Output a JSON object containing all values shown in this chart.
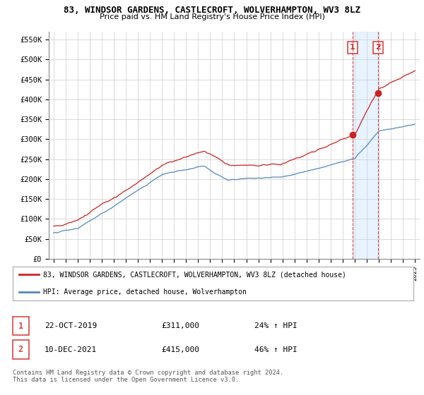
{
  "title_line1": "83, WINDSOR GARDENS, CASTLECROFT, WOLVERHAMPTON, WV3 8LZ",
  "title_line2": "Price paid vs. HM Land Registry's House Price Index (HPI)",
  "ylabel_ticks": [
    "£0",
    "£50K",
    "£100K",
    "£150K",
    "£200K",
    "£250K",
    "£300K",
    "£350K",
    "£400K",
    "£450K",
    "£500K",
    "£550K"
  ],
  "ytick_vals": [
    0,
    50000,
    100000,
    150000,
    200000,
    250000,
    300000,
    350000,
    400000,
    450000,
    500000,
    550000
  ],
  "ylim": [
    0,
    570000
  ],
  "x_start_year": 1995,
  "x_end_year": 2025,
  "xtick_years": [
    1995,
    1996,
    1997,
    1998,
    1999,
    2000,
    2001,
    2002,
    2003,
    2004,
    2005,
    2006,
    2007,
    2008,
    2009,
    2010,
    2011,
    2012,
    2013,
    2014,
    2015,
    2016,
    2017,
    2018,
    2019,
    2020,
    2021,
    2022,
    2023,
    2024,
    2025
  ],
  "hpi_color": "#5588bb",
  "price_color": "#cc2222",
  "sale1_year": 2019.81,
  "sale1_price": 311000,
  "sale2_year": 2021.94,
  "sale2_price": 415000,
  "vline_color": "#dd4444",
  "shade_color": "#ddeeff",
  "legend_line1": "83, WINDSOR GARDENS, CASTLECROFT, WOLVERHAMPTON, WV3 8LZ (detached house)",
  "legend_line2": "HPI: Average price, detached house, Wolverhampton",
  "table_row1": [
    "1",
    "22-OCT-2019",
    "£311,000",
    "24% ↑ HPI"
  ],
  "table_row2": [
    "2",
    "10-DEC-2021",
    "£415,000",
    "46% ↑ HPI"
  ],
  "footnote": "Contains HM Land Registry data © Crown copyright and database right 2024.\nThis data is licensed under the Open Government Licence v3.0."
}
